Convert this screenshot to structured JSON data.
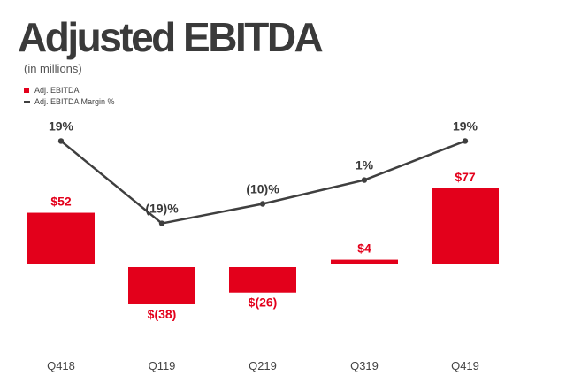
{
  "header": {
    "title": "Adjusted EBITDA",
    "subtitle": "(in millions)"
  },
  "colors": {
    "bar": "#e3001b",
    "line": "#3f3f3f",
    "label_dark": "#3a3a3a",
    "axis_text": "#444444"
  },
  "chart_data": {
    "type": "bar",
    "categories": [
      "Q418",
      "Q119",
      "Q219",
      "Q319",
      "Q419"
    ],
    "series": [
      {
        "name": "Adj. EBITDA",
        "type": "bar",
        "values": [
          52,
          -38,
          -26,
          4,
          77
        ],
        "labels": [
          "$52",
          "$(38)",
          "$(26)",
          "$4",
          "$77"
        ]
      },
      {
        "name": "Adj. EBITDA Margin %",
        "type": "line",
        "values": [
          19,
          -19,
          -10,
          1,
          19
        ],
        "labels": [
          "19%",
          "(19)%",
          "(10)%",
          "1%",
          "19%"
        ]
      }
    ],
    "legend": {
      "position": "top-left",
      "items": [
        "Adj. EBITDA",
        "Adj. EBITDA Margin %"
      ]
    },
    "grid": false
  }
}
